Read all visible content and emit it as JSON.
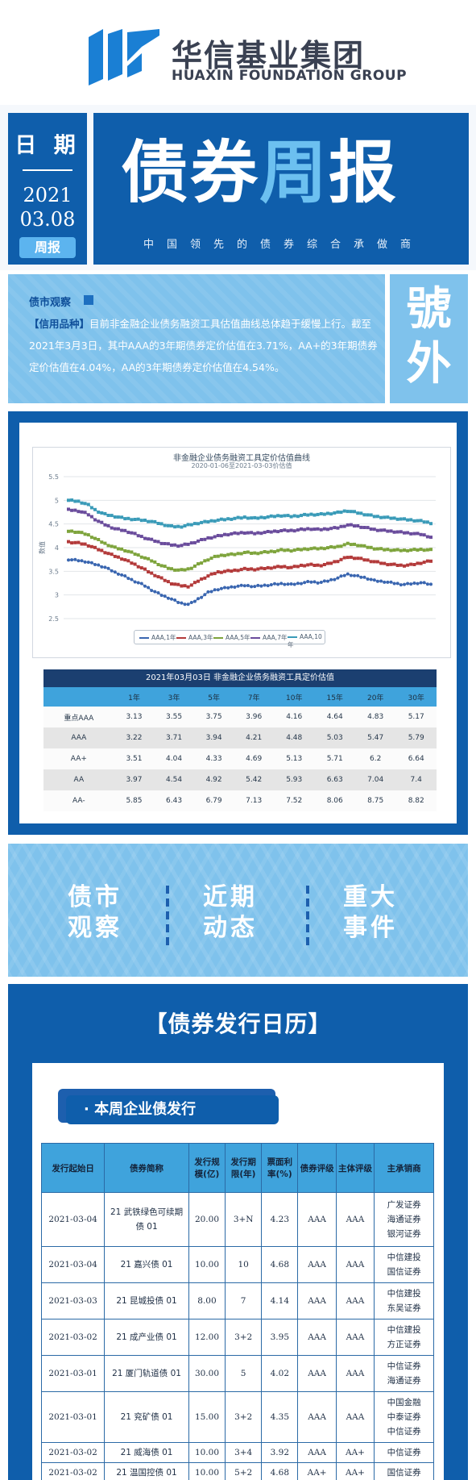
{
  "header": {
    "company_cn": "华信基业集团",
    "company_en": "HUAXIN FOUNDATION GROUP",
    "date_label": "日 期",
    "year": "2021",
    "month_day": "03.08",
    "tag": "周报",
    "title_a": "债券",
    "title_b": "周",
    "title_c": "报",
    "subtitle": "中国领先的债券综合承做商",
    "side_badge_1": "號",
    "side_badge_2": "外"
  },
  "observation": {
    "heading": "债市观察",
    "tag": "【信用品种】",
    "body": "目前非金融企业债务融资工具估值曲线总体趋于缓慢上行。截至2021年3月3日，其中AAA的3年期债券定价估值在3.71%，AA+的3年期债券定价估值在4.04%，AA的3年期债券定价估值在4.54%。"
  },
  "chart_data": {
    "type": "line",
    "title": "非金融企业债务融资工具定价估值曲线",
    "subtitle": "2020-01-06至2021-03-03价估值",
    "ylabel": "数值",
    "ylim": [
      2.5,
      5.5
    ],
    "yticks": [
      "5.5",
      "5",
      "4.5",
      "4",
      "3.5",
      "3",
      "2.5"
    ],
    "grid": true,
    "legend_position": "bottom",
    "points_per_series": 110,
    "series": [
      {
        "name": "AAA,1年",
        "color": "#3a66b0",
        "values": [
          3.75,
          3.73,
          3.7,
          3.64,
          3.58,
          3.48,
          3.4,
          3.3,
          3.22,
          3.1,
          3.0,
          2.92,
          2.83,
          2.8,
          2.92,
          3.05,
          3.12,
          3.15,
          3.18,
          3.2,
          3.18,
          3.2,
          3.22,
          3.24,
          3.22,
          3.25,
          3.28,
          3.26,
          3.3,
          3.36,
          3.44,
          3.4,
          3.36,
          3.3,
          3.28,
          3.25,
          3.22,
          3.24,
          3.26,
          3.22
        ]
      },
      {
        "name": "AAA,3年",
        "color": "#b33a3a",
        "values": [
          4.12,
          4.1,
          4.06,
          3.98,
          3.9,
          3.82,
          3.75,
          3.66,
          3.56,
          3.45,
          3.35,
          3.25,
          3.2,
          3.18,
          3.3,
          3.4,
          3.48,
          3.5,
          3.52,
          3.55,
          3.54,
          3.56,
          3.58,
          3.6,
          3.58,
          3.62,
          3.64,
          3.62,
          3.66,
          3.72,
          3.8,
          3.78,
          3.74,
          3.7,
          3.66,
          3.64,
          3.62,
          3.64,
          3.68,
          3.72
        ]
      },
      {
        "name": "AAA,5年",
        "color": "#7ea43c",
        "values": [
          4.35,
          4.33,
          4.28,
          4.18,
          4.08,
          4.0,
          3.95,
          3.88,
          3.8,
          3.72,
          3.62,
          3.55,
          3.52,
          3.55,
          3.65,
          3.75,
          3.82,
          3.85,
          3.86,
          3.9,
          3.88,
          3.9,
          3.92,
          3.95,
          3.94,
          3.96,
          3.98,
          3.98,
          4.0,
          4.02,
          4.08,
          4.06,
          4.02,
          3.98,
          3.96,
          3.95,
          3.94,
          3.95,
          3.96,
          3.95
        ]
      },
      {
        "name": "AAA,7年",
        "color": "#6a4c9c",
        "values": [
          4.8,
          4.78,
          4.72,
          4.58,
          4.48,
          4.4,
          4.36,
          4.3,
          4.22,
          4.16,
          4.1,
          4.06,
          4.04,
          4.08,
          4.14,
          4.2,
          4.24,
          4.28,
          4.3,
          4.32,
          4.3,
          4.32,
          4.34,
          4.36,
          4.36,
          4.38,
          4.4,
          4.38,
          4.4,
          4.42,
          4.48,
          4.46,
          4.42,
          4.38,
          4.36,
          4.34,
          4.32,
          4.3,
          4.28,
          4.22
        ]
      },
      {
        "name": "AAA,10年",
        "color": "#3a9bb8",
        "values": [
          5.0,
          4.98,
          4.92,
          4.78,
          4.7,
          4.66,
          4.62,
          4.6,
          4.58,
          4.55,
          4.5,
          4.45,
          4.44,
          4.48,
          4.52,
          4.55,
          4.58,
          4.6,
          4.62,
          4.64,
          4.62,
          4.64,
          4.66,
          4.68,
          4.66,
          4.68,
          4.7,
          4.7,
          4.72,
          4.74,
          4.78,
          4.74,
          4.7,
          4.66,
          4.64,
          4.62,
          4.6,
          4.58,
          4.56,
          4.52
        ]
      }
    ]
  },
  "valuation_table": {
    "title": "2021年03月03日  非金融企业债务融资工具定价估值",
    "headers": [
      "",
      "1年",
      "3年",
      "5年",
      "7年",
      "10年",
      "15年",
      "20年",
      "30年"
    ],
    "rows": [
      [
        "重点AAA",
        "3.13",
        "3.55",
        "3.75",
        "3.96",
        "4.16",
        "4.64",
        "4.83",
        "5.17"
      ],
      [
        "AAA",
        "3.22",
        "3.71",
        "3.94",
        "4.21",
        "4.48",
        "5.03",
        "5.47",
        "5.79"
      ],
      [
        "AA+",
        "3.51",
        "4.04",
        "4.33",
        "4.69",
        "5.13",
        "5.71",
        "6.2",
        "6.64"
      ],
      [
        "AA",
        "3.97",
        "4.54",
        "4.92",
        "5.42",
        "5.93",
        "6.63",
        "7.04",
        "7.4"
      ],
      [
        "AA-",
        "5.85",
        "6.43",
        "6.79",
        "7.13",
        "7.52",
        "8.06",
        "8.75",
        "8.82"
      ]
    ]
  },
  "banner": {
    "items": [
      {
        "line1": "债市",
        "line2": "观察"
      },
      {
        "line1": "近期",
        "line2": "动态"
      },
      {
        "line1": "重大",
        "line2": "事件"
      }
    ]
  },
  "calendar": {
    "title": "【债券发行日历】",
    "tab": "· 本周企业债发行",
    "headers": [
      "发行起始日",
      "债券简称",
      "发行规模(亿)",
      "发行期限(年)",
      "票面利率(%)",
      "债券评级",
      "主体评级",
      "主承销商"
    ],
    "rows": [
      [
        "2021-03-04",
        "21 武铁绿色可续期债 01",
        "20.00",
        "3+N",
        "4.23",
        "AAA",
        "AAA",
        "广发证券\n海通证券\n银河证券"
      ],
      [
        "2021-03-04",
        "21 嘉兴债 01",
        "10.00",
        "10",
        "4.68",
        "AAA",
        "AAA",
        "中信建投\n国信证券"
      ],
      [
        "2021-03-03",
        "21 昆城投债 01",
        "8.00",
        "7",
        "4.14",
        "AAA",
        "AAA",
        "中信建投\n东吴证券"
      ],
      [
        "2021-03-02",
        "21 成产业债 01",
        "12.00",
        "3+2",
        "3.95",
        "AAA",
        "AAA",
        "中信建投\n方正证券"
      ],
      [
        "2021-03-01",
        "21 厦门轨道债 01",
        "30.00",
        "5",
        "4.02",
        "AAA",
        "AAA",
        "中信证券\n海通证券"
      ],
      [
        "2021-03-01",
        "21 兖矿债 01",
        "15.00",
        "3+2",
        "4.35",
        "AAA",
        "AAA",
        "中国金融\n中泰证券\n中信证券"
      ],
      [
        "2021-03-02",
        "21 威海债 01",
        "10.00",
        "3+4",
        "3.92",
        "AAA",
        "AA+",
        "中信证券"
      ],
      [
        "2021-03-02",
        "21 温国控债 01",
        "10.00",
        "5+2",
        "4.68",
        "AA+",
        "AA+",
        "国信证券"
      ]
    ]
  }
}
